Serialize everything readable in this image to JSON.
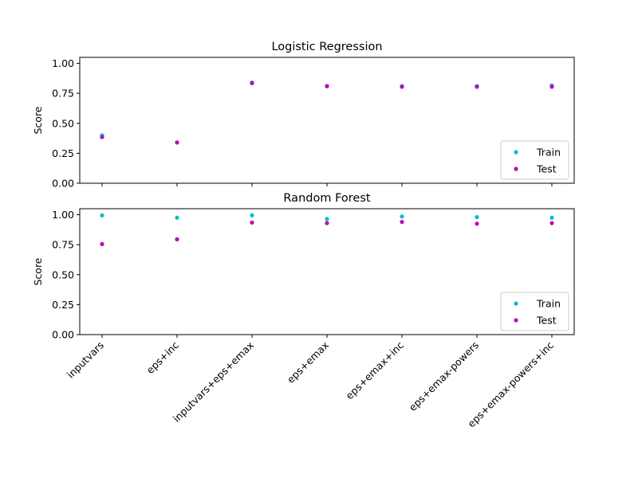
{
  "chart_data": [
    {
      "type": "scatter",
      "title": "Logistic Regression",
      "xlabel": "",
      "ylabel": "Score",
      "ylim": [
        0,
        1.05
      ],
      "yticks": [
        "0.00",
        "0.25",
        "0.50",
        "0.75",
        "1.00"
      ],
      "categories": [
        "inputvars",
        "eps+inc",
        "inputvars+eps+emax",
        "eps+emax",
        "eps+emax+inc",
        "eps+emax-powers",
        "eps+emax-powers+inc"
      ],
      "legend_position": "lower-right",
      "grid": false,
      "series": [
        {
          "name": "Train",
          "color": "#00bfbf",
          "values": [
            0.4,
            0.34,
            0.84,
            0.81,
            0.81,
            0.81,
            0.815
          ]
        },
        {
          "name": "Test",
          "color": "#bf00bf",
          "values": [
            0.385,
            0.34,
            0.835,
            0.81,
            0.805,
            0.805,
            0.805
          ]
        }
      ]
    },
    {
      "type": "scatter",
      "title": "Random Forest",
      "xlabel": "",
      "ylabel": "Score",
      "ylim": [
        0,
        1.05
      ],
      "yticks": [
        "0.00",
        "0.25",
        "0.50",
        "0.75",
        "1.00"
      ],
      "categories": [
        "inputvars",
        "eps+inc",
        "inputvars+eps+emax",
        "eps+emax",
        "eps+emax+inc",
        "eps+emax-powers",
        "eps+emax-powers+inc"
      ],
      "legend_position": "lower-right",
      "grid": false,
      "series": [
        {
          "name": "Train",
          "color": "#00bfbf",
          "values": [
            0.995,
            0.975,
            0.995,
            0.965,
            0.985,
            0.98,
            0.975
          ]
        },
        {
          "name": "Test",
          "color": "#bf00bf",
          "values": [
            0.755,
            0.795,
            0.935,
            0.93,
            0.94,
            0.925,
            0.93
          ]
        }
      ]
    }
  ]
}
